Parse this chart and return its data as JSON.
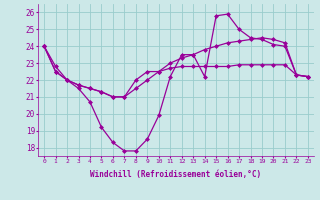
{
  "xlabel": "Windchill (Refroidissement éolien,°C)",
  "x": [
    0,
    1,
    2,
    3,
    4,
    5,
    6,
    7,
    8,
    9,
    10,
    11,
    12,
    13,
    14,
    15,
    16,
    17,
    18,
    19,
    20,
    21,
    22,
    23
  ],
  "line1": [
    24.0,
    22.8,
    22.0,
    21.5,
    20.7,
    19.2,
    18.3,
    17.8,
    17.8,
    18.5,
    19.9,
    22.2,
    23.5,
    23.5,
    22.2,
    25.8,
    25.9,
    25.0,
    24.5,
    24.4,
    24.1,
    24.0,
    22.3,
    22.2
  ],
  "line2": [
    24.0,
    22.5,
    22.0,
    21.7,
    21.5,
    21.3,
    21.0,
    21.0,
    21.5,
    22.0,
    22.5,
    23.0,
    23.3,
    23.5,
    23.8,
    24.0,
    24.2,
    24.3,
    24.4,
    24.5,
    24.4,
    24.2,
    22.3,
    22.2
  ],
  "line3": [
    24.0,
    22.5,
    22.0,
    21.7,
    21.5,
    21.3,
    21.0,
    21.0,
    22.0,
    22.5,
    22.5,
    22.7,
    22.8,
    22.8,
    22.8,
    22.8,
    22.8,
    22.9,
    22.9,
    22.9,
    22.9,
    22.9,
    22.3,
    22.2
  ],
  "ylim": [
    17.5,
    26.5
  ],
  "yticks": [
    18,
    19,
    20,
    21,
    22,
    23,
    24,
    25,
    26
  ],
  "bg_color": "#cce8e8",
  "grid_color": "#99cccc",
  "line_color": "#990099",
  "markersize": 2.5
}
